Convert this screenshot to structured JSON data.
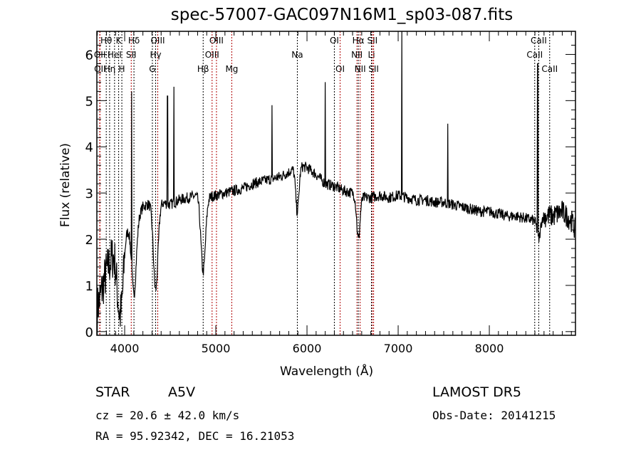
{
  "chart_data": {
    "type": "line",
    "title": "spec-57007-GAC097N16M1_sp03-087.fits",
    "xlabel": "Wavelength (Å)",
    "ylabel": "Flux (relative)",
    "xlim": [
      3695,
      8945
    ],
    "ylim": [
      -0.08,
      6.5
    ],
    "xticks": [
      4000,
      5000,
      6000,
      7000,
      8000
    ],
    "yticks": [
      0,
      1,
      2,
      3,
      4,
      5,
      6
    ],
    "grid": false,
    "continuum": {
      "wavelength": [
        3700,
        3800,
        3900,
        4000,
        4100,
        4200,
        4300,
        4400,
        4500,
        4600,
        4700,
        4800,
        4900,
        5000,
        5100,
        5200,
        5300,
        5400,
        5500,
        5600,
        5700,
        5800,
        5900,
        6000,
        6100,
        6200,
        6300,
        6400,
        6500,
        6600,
        6700,
        6800,
        6900,
        7000,
        7100,
        7200,
        7300,
        7400,
        7500,
        7600,
        7700,
        7800,
        7900,
        8000,
        8100,
        8200,
        8300,
        8400,
        8500,
        8600,
        8700,
        8800,
        8900,
        8945
      ],
      "flux": [
        0.5,
        1.3,
        1.8,
        2.2,
        2.3,
        2.7,
        2.8,
        2.8,
        2.75,
        2.85,
        2.9,
        2.95,
        2.9,
        2.95,
        3.0,
        3.05,
        3.1,
        3.2,
        3.25,
        3.3,
        3.35,
        3.45,
        3.6,
        3.55,
        3.4,
        3.2,
        3.15,
        3.05,
        3.0,
        2.9,
        2.9,
        2.95,
        2.9,
        2.95,
        2.9,
        2.85,
        2.85,
        2.8,
        2.8,
        2.75,
        2.7,
        2.65,
        2.6,
        2.6,
        2.55,
        2.5,
        2.5,
        2.45,
        2.4,
        2.5,
        2.5,
        2.6,
        2.4,
        2.2
      ]
    },
    "emission_spikes": [
      {
        "wavelength": 4075,
        "flux": 5.2
      },
      {
        "wavelength": 4470,
        "flux": 5.1
      },
      {
        "wavelength": 4540,
        "flux": 5.3
      },
      {
        "wavelength": 5617,
        "flux": 4.9
      },
      {
        "wavelength": 6200,
        "flux": 5.4
      },
      {
        "wavelength": 7040,
        "flux": 6.5
      },
      {
        "wavelength": 7545,
        "flux": 4.5
      },
      {
        "wavelength": 8530,
        "flux": 5.8
      }
    ],
    "absorption_dips": [
      {
        "wavelength": 3934,
        "flux": 0.9
      },
      {
        "wavelength": 3970,
        "flux": 1.0
      },
      {
        "wavelength": 4102,
        "flux": 0.8
      },
      {
        "wavelength": 4340,
        "flux": 0.9
      },
      {
        "wavelength": 4861,
        "flux": 1.3
      },
      {
        "wavelength": 5894,
        "flux": 2.6
      },
      {
        "wavelength": 6563,
        "flux": 2.0
      },
      {
        "wavelength": 8542,
        "flux": 2.0
      }
    ],
    "lines": [
      {
        "label": "Hθ",
        "wavelength": 3798,
        "row": 0,
        "color": "#000000"
      },
      {
        "label": "K",
        "wavelength": 3934,
        "row": 0,
        "color": "#000000"
      },
      {
        "label": "Hδ",
        "wavelength": 4102,
        "row": 0,
        "color": "#000000"
      },
      {
        "label": "OIII",
        "wavelength": 4363,
        "row": 0,
        "color": "#b00000"
      },
      {
        "label": "OIII",
        "wavelength": 5007,
        "row": 0,
        "color": "#b00000"
      },
      {
        "label": "OI",
        "wavelength": 6300,
        "row": 0,
        "color": "#000000"
      },
      {
        "label": "Hα",
        "wavelength": 6563,
        "row": 0,
        "color": "#000000"
      },
      {
        "label": "SII",
        "wavelength": 6717,
        "row": 0,
        "color": "#b00000"
      },
      {
        "label": "CaII",
        "wavelength": 8542,
        "row": 0,
        "color": "#000000"
      },
      {
        "label": "OII",
        "wavelength": 3727,
        "row": 1,
        "color": "#b00000"
      },
      {
        "label": "HeI",
        "wavelength": 3889,
        "row": 1,
        "color": "#000000"
      },
      {
        "label": "SII",
        "wavelength": 4072,
        "row": 1,
        "color": "#b00000"
      },
      {
        "label": "Hγ",
        "wavelength": 4340,
        "row": 1,
        "color": "#000000"
      },
      {
        "label": "OIII",
        "wavelength": 4959,
        "row": 1,
        "color": "#b00000"
      },
      {
        "label": "Na",
        "wavelength": 5894,
        "row": 1,
        "color": "#000000"
      },
      {
        "label": "NII",
        "wavelength": 6548,
        "row": 1,
        "color": "#b00000"
      },
      {
        "label": "Li",
        "wavelength": 6707,
        "row": 1,
        "color": "#000000"
      },
      {
        "label": "CaII",
        "wavelength": 8498,
        "row": 1,
        "color": "#000000"
      },
      {
        "label": "OII",
        "wavelength": 3729,
        "row": 2,
        "color": "#b00000"
      },
      {
        "label": "Hη",
        "wavelength": 3835,
        "row": 2,
        "color": "#000000"
      },
      {
        "label": "H",
        "wavelength": 3969,
        "row": 2,
        "color": "#000000"
      },
      {
        "label": "G",
        "wavelength": 4304,
        "row": 2,
        "color": "#000000"
      },
      {
        "label": "Hβ",
        "wavelength": 4861,
        "row": 2,
        "color": "#000000"
      },
      {
        "label": "Mg",
        "wavelength": 5175,
        "row": 2,
        "color": "#b00000"
      },
      {
        "label": "OI",
        "wavelength": 6363,
        "row": 2,
        "color": "#b00000"
      },
      {
        "label": "NII",
        "wavelength": 6583,
        "row": 2,
        "color": "#b00000"
      },
      {
        "label": "SII",
        "wavelength": 6731,
        "row": 2,
        "color": "#b00000"
      },
      {
        "label": "CaII",
        "wavelength": 8662,
        "row": 2,
        "color": "#000000"
      }
    ]
  },
  "info": {
    "class": "STAR",
    "subclass": "A5V",
    "survey": "LAMOST DR5",
    "cz": "cz = 20.6 ± 42.0 km/s",
    "obs_date": "Obs-Date: 20141215",
    "coords": "RA =  95.92342, DEC =  16.21053"
  }
}
